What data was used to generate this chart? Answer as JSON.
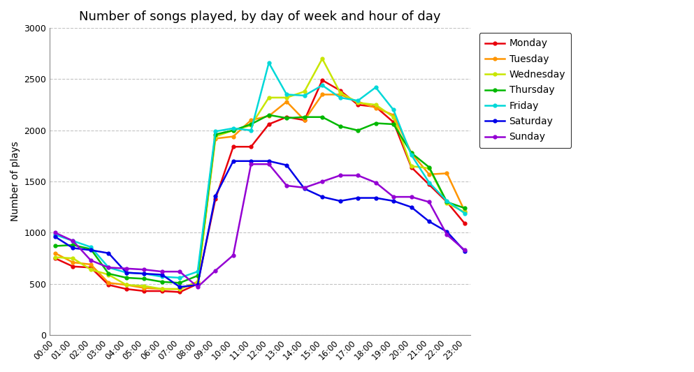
{
  "title": "Number of songs played, by day of week and hour of day",
  "ylabel": "Number of plays",
  "hours": [
    0,
    1,
    2,
    3,
    4,
    5,
    6,
    7,
    8,
    9,
    10,
    11,
    12,
    13,
    14,
    15,
    16,
    17,
    18,
    19,
    20,
    21,
    22,
    23
  ],
  "hour_labels": [
    "00:00",
    "01:00",
    "02:00",
    "03:00",
    "04:00",
    "05:00",
    "06:00",
    "07:00",
    "08:00",
    "09:00",
    "10:00",
    "11:00",
    "12:00",
    "13:00",
    "14:00",
    "15:00",
    "16:00",
    "17:00",
    "18:00",
    "19:00",
    "20:00",
    "21:00",
    "22:00",
    "23:00"
  ],
  "days": [
    "Monday",
    "Tuesday",
    "Wednesday",
    "Thursday",
    "Friday",
    "Saturday",
    "Sunday"
  ],
  "colors": [
    "#e8000b",
    "#ff9500",
    "#c8e600",
    "#00b800",
    "#00d8d8",
    "#0000e8",
    "#9400d3"
  ],
  "data": {
    "Monday": [
      750,
      670,
      660,
      490,
      450,
      430,
      430,
      420,
      500,
      1330,
      1840,
      1840,
      2060,
      2130,
      2100,
      2490,
      2390,
      2250,
      2230,
      2080,
      1640,
      1470,
      1300,
      1090
    ],
    "Tuesday": [
      800,
      710,
      690,
      510,
      490,
      460,
      450,
      450,
      520,
      1920,
      1940,
      2100,
      2140,
      2280,
      2100,
      2350,
      2350,
      2280,
      2220,
      2150,
      1780,
      1570,
      1580,
      1210
    ],
    "Wednesday": [
      760,
      750,
      640,
      590,
      490,
      480,
      450,
      450,
      520,
      1940,
      2000,
      2050,
      2320,
      2320,
      2380,
      2700,
      2370,
      2270,
      2250,
      2130,
      1650,
      1630,
      1290,
      1200
    ],
    "Thursday": [
      870,
      880,
      840,
      600,
      560,
      550,
      520,
      510,
      580,
      1960,
      2000,
      2060,
      2150,
      2120,
      2130,
      2130,
      2040,
      2000,
      2070,
      2060,
      1780,
      1640,
      1300,
      1240
    ],
    "Friday": [
      980,
      920,
      860,
      660,
      610,
      600,
      570,
      560,
      620,
      1990,
      2020,
      2000,
      2660,
      2350,
      2340,
      2440,
      2320,
      2290,
      2420,
      2200,
      1760,
      1490,
      1310,
      1190
    ],
    "Saturday": [
      960,
      850,
      830,
      800,
      610,
      600,
      590,
      470,
      490,
      1360,
      1700,
      1700,
      1700,
      1660,
      1430,
      1350,
      1310,
      1340,
      1340,
      1310,
      1250,
      1110,
      1010,
      820
    ],
    "Sunday": [
      1000,
      920,
      730,
      660,
      650,
      640,
      620,
      620,
      470,
      630,
      780,
      1670,
      1670,
      1460,
      1440,
      1500,
      1560,
      1560,
      1490,
      1350,
      1350,
      1300,
      980,
      830
    ]
  },
  "ylim": [
    0,
    3000
  ],
  "yticks": [
    0,
    500,
    1000,
    1500,
    2000,
    2500,
    3000
  ],
  "background_color": "#ffffff",
  "grid_color": "#aaaaaa"
}
